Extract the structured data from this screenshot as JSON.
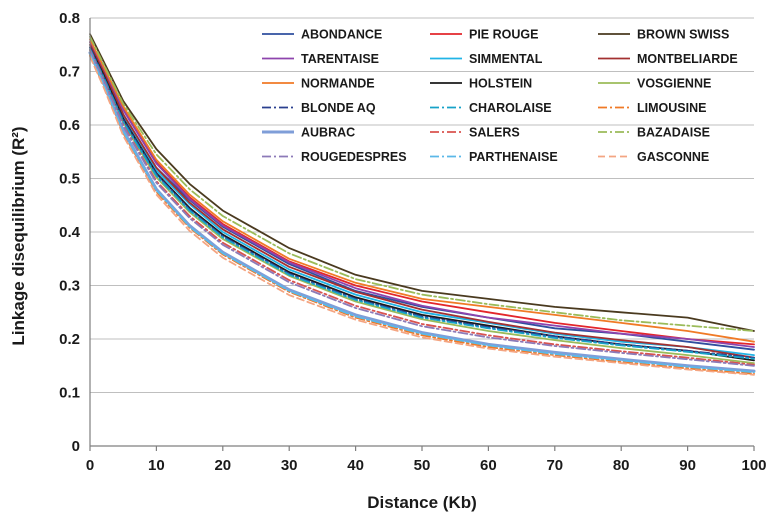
{
  "chart_data": {
    "type": "line",
    "xlabel": "Distance (Kb)",
    "ylabel": "Linkage disequilibrium  (R²)",
    "xlim": [
      0,
      100
    ],
    "ylim": [
      0,
      0.8
    ],
    "x_ticks": [
      "0",
      "10",
      "20",
      "30",
      "40",
      "50",
      "60",
      "70",
      "80",
      "90",
      "100"
    ],
    "y_ticks": [
      "0",
      "0.1",
      "0.2",
      "0.3",
      "0.4",
      "0.5",
      "0.6",
      "0.7",
      "0.8"
    ],
    "grid": "horizontal",
    "legend_position": "top-right",
    "x": [
      0,
      2,
      5,
      10,
      15,
      20,
      30,
      40,
      50,
      60,
      70,
      80,
      90,
      100
    ],
    "series": [
      {
        "name": "ABONDANCE",
        "color": "#2f4f9f",
        "dash": "solid",
        "values": [
          0.75,
          0.7,
          0.62,
          0.52,
          0.46,
          0.41,
          0.34,
          0.29,
          0.26,
          0.24,
          0.22,
          0.21,
          0.195,
          0.18
        ]
      },
      {
        "name": "PIE ROUGE",
        "color": "#e3262b",
        "dash": "solid",
        "values": [
          0.755,
          0.705,
          0.63,
          0.53,
          0.465,
          0.415,
          0.345,
          0.3,
          0.27,
          0.25,
          0.23,
          0.215,
          0.2,
          0.19
        ]
      },
      {
        "name": "BROWN SWISS",
        "color": "#4a3a1f",
        "dash": "solid",
        "values": [
          0.77,
          0.72,
          0.645,
          0.555,
          0.49,
          0.44,
          0.37,
          0.32,
          0.29,
          0.275,
          0.26,
          0.25,
          0.24,
          0.215
        ]
      },
      {
        "name": "TARENTAISE",
        "color": "#8e44ad",
        "dash": "solid",
        "values": [
          0.755,
          0.705,
          0.628,
          0.528,
          0.462,
          0.412,
          0.343,
          0.295,
          0.262,
          0.24,
          0.225,
          0.21,
          0.2,
          0.185
        ]
      },
      {
        "name": "SIMMENTAL",
        "color": "#20b4e6",
        "dash": "solid",
        "values": [
          0.745,
          0.695,
          0.615,
          0.515,
          0.452,
          0.4,
          0.33,
          0.283,
          0.25,
          0.23,
          0.21,
          0.195,
          0.185,
          0.17
        ]
      },
      {
        "name": "MONTBELIARDE",
        "color": "#a33030",
        "dash": "solid",
        "values": [
          0.75,
          0.7,
          0.62,
          0.52,
          0.455,
          0.405,
          0.335,
          0.288,
          0.255,
          0.232,
          0.212,
          0.198,
          0.185,
          0.165
        ]
      },
      {
        "name": "NORMANDE",
        "color": "#f07a26",
        "dash": "solid",
        "values": [
          0.76,
          0.71,
          0.635,
          0.535,
          0.47,
          0.42,
          0.35,
          0.305,
          0.275,
          0.26,
          0.245,
          0.23,
          0.215,
          0.195
        ]
      },
      {
        "name": "HOLSTEIN",
        "color": "#1a1a1a",
        "dash": "solid",
        "values": [
          0.745,
          0.695,
          0.612,
          0.51,
          0.445,
          0.395,
          0.325,
          0.278,
          0.245,
          0.225,
          0.205,
          0.19,
          0.178,
          0.16
        ]
      },
      {
        "name": "VOSGIENNE",
        "color": "#9bbb59",
        "dash": "solid",
        "values": [
          0.74,
          0.69,
          0.605,
          0.502,
          0.437,
          0.387,
          0.318,
          0.27,
          0.237,
          0.215,
          0.198,
          0.183,
          0.17,
          0.155
        ]
      },
      {
        "name": "BLONDE AQ",
        "color": "#2a3f8f",
        "dash": "dashdot",
        "values": [
          0.745,
          0.692,
          0.61,
          0.508,
          0.442,
          0.392,
          0.322,
          0.275,
          0.242,
          0.222,
          0.205,
          0.19,
          0.178,
          0.165
        ]
      },
      {
        "name": "CHAROLAISE",
        "color": "#17a2c8",
        "dash": "dashdot",
        "values": [
          0.742,
          0.69,
          0.606,
          0.505,
          0.44,
          0.39,
          0.32,
          0.273,
          0.24,
          0.22,
          0.202,
          0.188,
          0.176,
          0.163
        ]
      },
      {
        "name": "LIMOUSINE",
        "color": "#f07a26",
        "dash": "dashdot",
        "values": [
          0.73,
          0.675,
          0.585,
          0.475,
          0.408,
          0.358,
          0.288,
          0.24,
          0.207,
          0.185,
          0.17,
          0.157,
          0.145,
          0.135
        ]
      },
      {
        "name": "AUBRAC",
        "color": "#7f9ed8",
        "dash": "solid",
        "width": 3,
        "values": [
          0.735,
          0.68,
          0.59,
          0.48,
          0.412,
          0.362,
          0.292,
          0.245,
          0.212,
          0.19,
          0.175,
          0.162,
          0.15,
          0.14
        ]
      },
      {
        "name": "SALERS",
        "color": "#d9534f",
        "dash": "dashdot",
        "values": [
          0.74,
          0.686,
          0.6,
          0.495,
          0.43,
          0.38,
          0.31,
          0.262,
          0.228,
          0.207,
          0.19,
          0.177,
          0.165,
          0.152
        ]
      },
      {
        "name": "BAZADAISE",
        "color": "#9bbb59",
        "dash": "dashdot",
        "values": [
          0.765,
          0.715,
          0.64,
          0.545,
          0.48,
          0.43,
          0.36,
          0.312,
          0.283,
          0.265,
          0.25,
          0.235,
          0.225,
          0.215
        ]
      },
      {
        "name": "ROUGEDESPRES",
        "color": "#8c7ab8",
        "dash": "dashdot",
        "values": [
          0.74,
          0.685,
          0.598,
          0.492,
          0.426,
          0.376,
          0.306,
          0.258,
          0.224,
          0.203,
          0.187,
          0.174,
          0.162,
          0.15
        ]
      },
      {
        "name": "PARTHENAISE",
        "color": "#5bb8e8",
        "dash": "dashdot",
        "values": [
          0.733,
          0.678,
          0.588,
          0.478,
          0.41,
          0.36,
          0.29,
          0.242,
          0.21,
          0.188,
          0.172,
          0.16,
          0.148,
          0.138
        ]
      },
      {
        "name": "GASCONNE",
        "color": "#f4a582",
        "dash": "dash",
        "values": [
          0.728,
          0.672,
          0.58,
          0.47,
          0.402,
          0.352,
          0.282,
          0.236,
          0.203,
          0.182,
          0.167,
          0.155,
          0.143,
          0.133
        ]
      }
    ]
  }
}
